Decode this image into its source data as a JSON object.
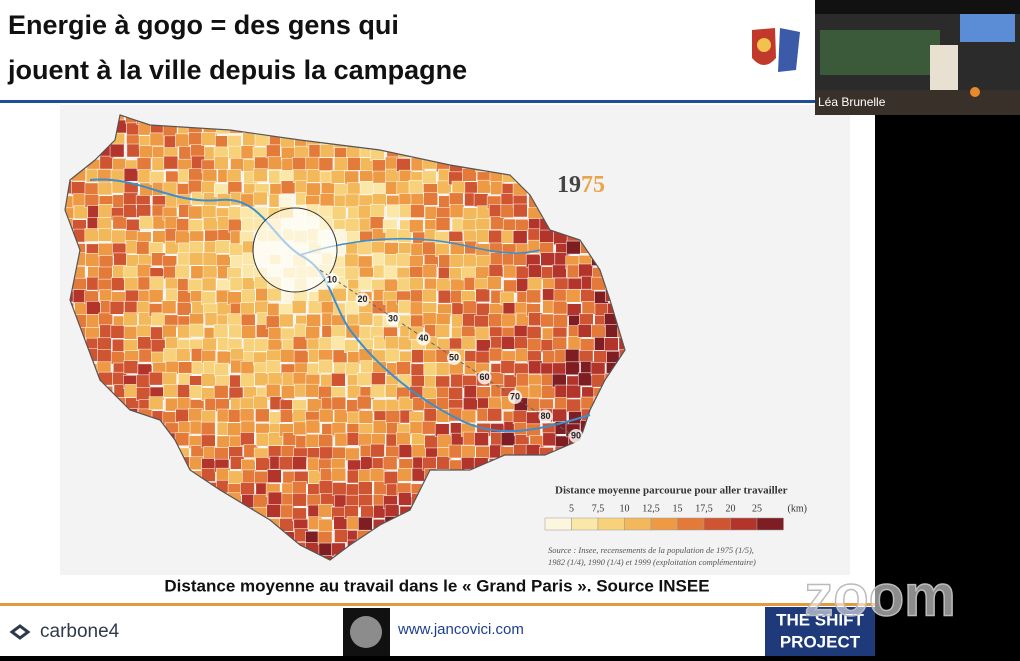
{
  "slide": {
    "title_lines": [
      "Energie à gogo = des gens qui",
      "jouent à la ville depuis la campagne"
    ],
    "map": {
      "year_prefix": "19",
      "year_suffix": "75",
      "ring_labels": [
        10,
        20,
        30,
        40,
        50,
        60,
        70,
        80,
        90
      ],
      "legend": {
        "title": "Distance moyenne parcourue pour aller travailler",
        "ticks": [
          "5",
          "7,5",
          "10",
          "12,5",
          "15",
          "17,5",
          "20",
          "25"
        ],
        "unit": "(km)",
        "colors": [
          "#fdf6df",
          "#fbe7a8",
          "#f8d27a",
          "#f3b85a",
          "#ee9a45",
          "#e47a3a",
          "#cf5432",
          "#b2342b",
          "#7e1d22"
        ]
      },
      "source_lines": [
        "Source : Insee, recensements de la population de 1975 (1/5),",
        "1982 (1/4), 1990 (1/4) et 1999 (exploitation complémentaire)"
      ]
    },
    "caption": "Distance moyenne au travail dans le « Grand Paris ». Source INSEE",
    "footer": {
      "carbone4": "carbone4",
      "url": "www.jancovici.com",
      "shift_lines": [
        "THE SHIFT",
        "PROJECT"
      ]
    }
  },
  "video": {
    "participant": "Léa Brunelle",
    "watermark": "zoom"
  }
}
